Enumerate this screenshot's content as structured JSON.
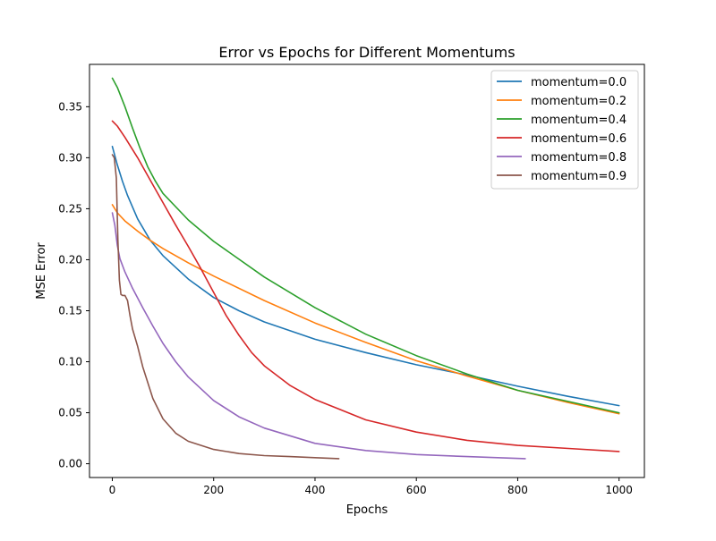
{
  "chart_data": {
    "type": "line",
    "title": "Error vs Epochs for Different Momentums",
    "xlabel": "Epochs",
    "ylabel": "MSE Error",
    "xlim": [
      -45,
      1050
    ],
    "ylim": [
      -0.0135,
      0.3915
    ],
    "xticks": [
      {
        "value": 0,
        "label": "0"
      },
      {
        "value": 200,
        "label": "200"
      },
      {
        "value": 400,
        "label": "400"
      },
      {
        "value": 600,
        "label": "600"
      },
      {
        "value": 800,
        "label": "800"
      },
      {
        "value": 1000,
        "label": "1000"
      }
    ],
    "yticks": [
      {
        "value": 0.0,
        "label": "0.00"
      },
      {
        "value": 0.05,
        "label": "0.05"
      },
      {
        "value": 0.1,
        "label": "0.10"
      },
      {
        "value": 0.15,
        "label": "0.15"
      },
      {
        "value": 0.2,
        "label": "0.20"
      },
      {
        "value": 0.25,
        "label": "0.25"
      },
      {
        "value": 0.3,
        "label": "0.30"
      },
      {
        "value": 0.35,
        "label": "0.35"
      }
    ],
    "grid": false,
    "legend_position": "top-right",
    "series": [
      {
        "name": "momentum=0.0",
        "color": "#1f77b4",
        "x": [
          0,
          10,
          20,
          30,
          50,
          75,
          100,
          150,
          200,
          250,
          300,
          400,
          500,
          600,
          700,
          800,
          900,
          1000
        ],
        "y": [
          0.311,
          0.293,
          0.277,
          0.263,
          0.24,
          0.219,
          0.204,
          0.181,
          0.163,
          0.15,
          0.139,
          0.122,
          0.109,
          0.097,
          0.087,
          0.076,
          0.066,
          0.057
        ]
      },
      {
        "name": "momentum=0.2",
        "color": "#ff7f0e",
        "x": [
          0,
          10,
          25,
          50,
          75,
          100,
          150,
          200,
          300,
          400,
          500,
          600,
          700,
          800,
          900,
          1000
        ],
        "y": [
          0.254,
          0.246,
          0.238,
          0.228,
          0.219,
          0.211,
          0.197,
          0.184,
          0.16,
          0.138,
          0.119,
          0.101,
          0.086,
          0.072,
          0.06,
          0.049
        ]
      },
      {
        "name": "momentum=0.4",
        "color": "#2ca02c",
        "x": [
          0,
          10,
          25,
          40,
          55,
          70,
          85,
          100,
          150,
          200,
          300,
          400,
          500,
          600,
          700,
          800,
          900,
          1000
        ],
        "y": [
          0.378,
          0.369,
          0.35,
          0.329,
          0.309,
          0.291,
          0.277,
          0.265,
          0.239,
          0.218,
          0.183,
          0.153,
          0.127,
          0.106,
          0.088,
          0.072,
          0.061,
          0.05
        ]
      },
      {
        "name": "momentum=0.6",
        "color": "#d62728",
        "x": [
          0,
          10,
          25,
          50,
          75,
          100,
          125,
          150,
          175,
          200,
          225,
          250,
          275,
          300,
          350,
          400,
          500,
          600,
          700,
          800,
          900,
          1000
        ],
        "y": [
          0.336,
          0.331,
          0.32,
          0.3,
          0.278,
          0.256,
          0.234,
          0.213,
          0.191,
          0.168,
          0.145,
          0.126,
          0.109,
          0.096,
          0.077,
          0.063,
          0.043,
          0.031,
          0.023,
          0.018,
          0.015,
          0.012
        ]
      },
      {
        "name": "momentum=0.8",
        "color": "#9467bd",
        "x": [
          0,
          5,
          10,
          15,
          25,
          40,
          60,
          80,
          100,
          125,
          150,
          200,
          250,
          300,
          400,
          500,
          600,
          700,
          815
        ],
        "y": [
          0.246,
          0.234,
          0.214,
          0.201,
          0.188,
          0.172,
          0.153,
          0.135,
          0.118,
          0.1,
          0.085,
          0.062,
          0.046,
          0.035,
          0.02,
          0.013,
          0.009,
          0.007,
          0.005
        ]
      },
      {
        "name": "momentum=0.9",
        "color": "#8c564b",
        "x": [
          0,
          4,
          8,
          11,
          14,
          17,
          20,
          25,
          30,
          35,
          40,
          50,
          60,
          80,
          100,
          125,
          150,
          200,
          250,
          300,
          350,
          400,
          447
        ],
        "y": [
          0.303,
          0.3,
          0.28,
          0.22,
          0.18,
          0.166,
          0.165,
          0.165,
          0.16,
          0.145,
          0.132,
          0.115,
          0.095,
          0.064,
          0.044,
          0.03,
          0.022,
          0.014,
          0.01,
          0.008,
          0.007,
          0.006,
          0.005
        ]
      }
    ]
  }
}
